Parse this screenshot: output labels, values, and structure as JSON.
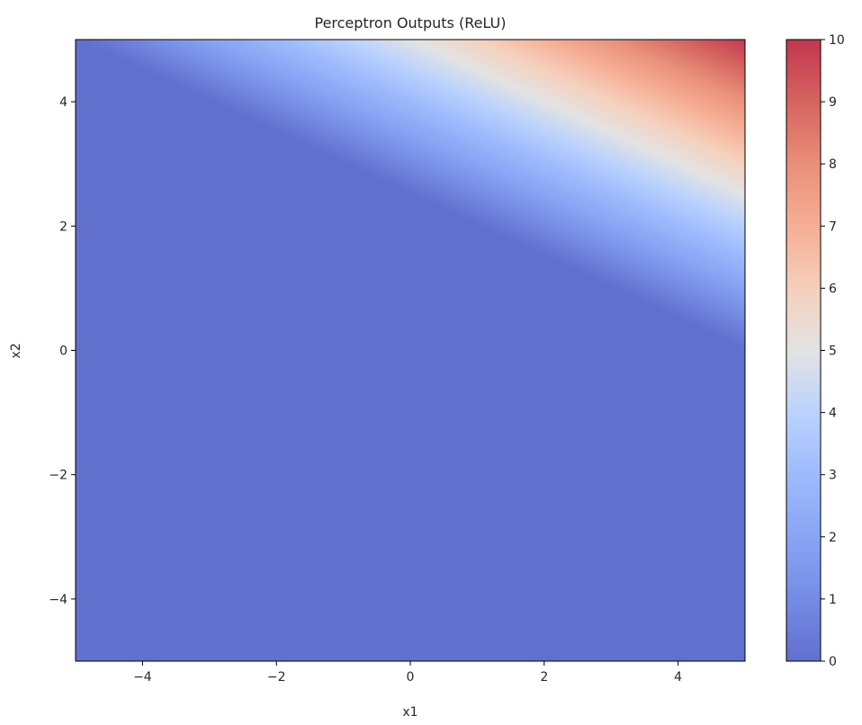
{
  "chart_data": {
    "type": "heatmap",
    "title": "Perceptron Outputs (ReLU)",
    "xlabel": "x1",
    "ylabel": "x2",
    "xlim": [
      -5,
      5
    ],
    "ylim": [
      -5,
      5
    ],
    "x_ticks": [
      -4,
      -2,
      0,
      2,
      4
    ],
    "y_ticks": [
      -4,
      -2,
      0,
      2,
      4
    ],
    "x_tick_labels": [
      "−4",
      "−2",
      "0",
      "2",
      "4"
    ],
    "y_tick_labels": [
      "−4",
      "−2",
      "0",
      "2",
      "4"
    ],
    "function": "ReLU(w1*x1 + w2*x2 + b)",
    "weights": [
      1,
      2
    ],
    "bias": -5,
    "colormap": "coolwarm",
    "alpha": 0.8,
    "colorbar": {
      "range": [
        0,
        10
      ],
      "ticks": [
        0,
        1,
        2,
        3,
        4,
        5,
        6,
        7,
        8,
        9,
        10
      ],
      "tick_labels": [
        "0",
        "1",
        "2",
        "3",
        "4",
        "5",
        "6",
        "7",
        "8",
        "9",
        "10"
      ]
    },
    "grid": false
  }
}
